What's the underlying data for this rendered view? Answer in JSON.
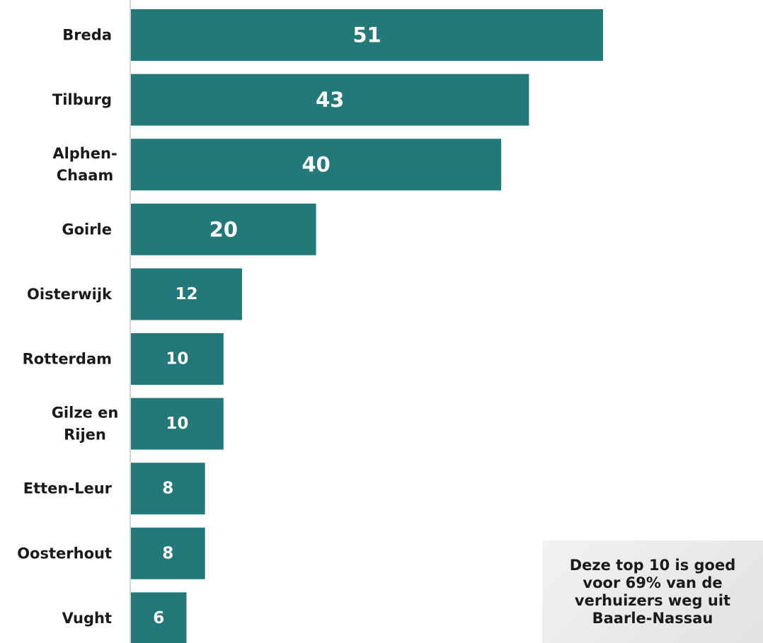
{
  "chart_data": {
    "type": "bar",
    "orientation": "horizontal",
    "categories": [
      "Breda",
      "Tilburg",
      "Alphen-\nChaam",
      "Goirle",
      "Oisterwijk",
      "Rotterdam",
      "Gilze en\nRijen",
      "Etten-Leur",
      "Oosterhout",
      "Vught"
    ],
    "values": [
      51,
      43,
      40,
      20,
      12,
      10,
      10,
      8,
      8,
      6
    ],
    "xlim": [
      0,
      51
    ],
    "grid": false,
    "bar_color": "#23787A",
    "data_labels": true
  },
  "callout": {
    "text": "Deze top 10 is goed voor 69% van de verhuizers weg uit Baarle-Nassau"
  }
}
